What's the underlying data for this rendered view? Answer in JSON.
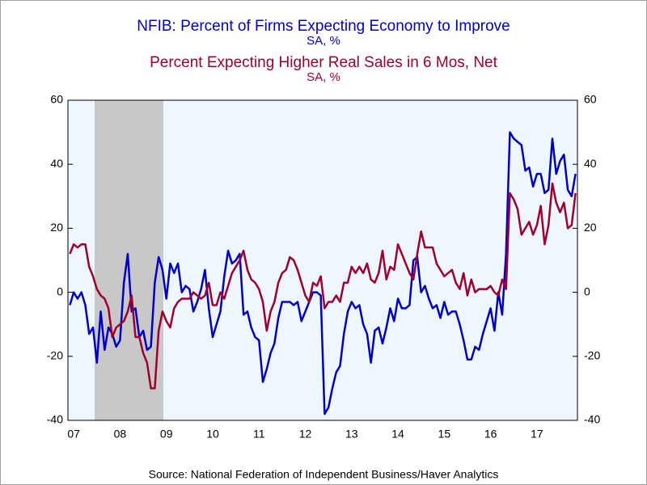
{
  "chart_data": {
    "type": "line",
    "series": [
      {
        "name": "NFIB: Percent of Firms Expecting Economy to Improve",
        "units": "SA, %",
        "color": "#0000c8",
        "values": [
          -4,
          0,
          -2,
          0,
          -4,
          -13,
          -11,
          -22,
          -6,
          -18,
          -11,
          -13,
          -17,
          -15,
          3,
          12,
          -6,
          -5,
          -14,
          -12,
          -18,
          -17,
          3,
          11,
          7,
          -2,
          9,
          6,
          9,
          0,
          2,
          1,
          -6,
          -3,
          1,
          7,
          -5,
          -14,
          -10,
          -6,
          5,
          13,
          9,
          10,
          12,
          -7,
          -6,
          -11,
          -14,
          -15,
          -28,
          -24,
          -19,
          -16,
          -8,
          -3,
          -3,
          -3,
          -4,
          -3,
          -9,
          -6,
          -3,
          0,
          0,
          -1,
          -38,
          -36,
          -30,
          -25,
          -23,
          -13,
          -6,
          -3,
          -5,
          -4,
          -10,
          -13,
          -22,
          -12,
          -11,
          -16,
          -11,
          -5,
          -9,
          -2,
          -5,
          -5,
          -4,
          10,
          11,
          0,
          2,
          -2,
          -5,
          -4,
          -8,
          -3,
          -7,
          -6,
          -6,
          -10,
          -15,
          -21,
          -21,
          -17,
          -18,
          -13,
          -9,
          -5,
          -12,
          0,
          -7,
          12,
          50,
          48,
          47,
          46,
          38,
          39,
          33,
          37,
          37,
          31,
          32,
          48,
          37,
          41,
          43,
          32,
          30,
          37
        ]
      },
      {
        "name": "Percent Expecting Higher Real Sales in 6 Mos, Net",
        "units": "SA, %",
        "color": "#a0002c",
        "values": [
          12,
          15,
          14,
          15,
          15,
          8,
          5,
          1,
          -1,
          -2,
          -5,
          -14,
          -11,
          -10,
          -9,
          -6,
          -1,
          -14,
          -14,
          -19,
          -22,
          -30,
          -30,
          -12,
          -6,
          -9,
          -11,
          -5,
          -3,
          -2,
          -2,
          -2,
          0,
          -1,
          -2,
          -1,
          3,
          -4,
          -4,
          0,
          -2,
          2,
          6,
          8,
          10,
          13,
          7,
          4,
          3,
          1,
          -3,
          -12,
          -6,
          -3,
          3,
          6,
          7,
          11,
          10,
          7,
          3,
          -1,
          -3,
          3,
          2,
          5,
          -5,
          -3,
          -3,
          -1,
          -3,
          3,
          3,
          8,
          6,
          8,
          6,
          9,
          4,
          3,
          6,
          13,
          4,
          8,
          7,
          15,
          12,
          9,
          6,
          4,
          12,
          19,
          14,
          14,
          14,
          9,
          7,
          5,
          6,
          7,
          3,
          1,
          6,
          -1,
          4,
          0,
          1,
          1,
          1,
          2,
          0,
          -1,
          4,
          1,
          31,
          29,
          26,
          18,
          20,
          22,
          18,
          21,
          27,
          15,
          21,
          34,
          28,
          25,
          28,
          20,
          21,
          31
        ]
      }
    ],
    "categories": [
      null,
      "07",
      null,
      null,
      null,
      null,
      null,
      null,
      null,
      null,
      null,
      null,
      null,
      "08",
      null,
      null,
      null,
      null,
      null,
      null,
      null,
      null,
      null,
      null,
      null,
      "09",
      null,
      null,
      null,
      null,
      null,
      null,
      null,
      null,
      null,
      null,
      null,
      "10",
      null,
      null,
      null,
      null,
      null,
      null,
      null,
      null,
      null,
      null,
      null,
      "11",
      null,
      null,
      null,
      null,
      null,
      null,
      null,
      null,
      null,
      null,
      null,
      "12",
      null,
      null,
      null,
      null,
      null,
      null,
      null,
      null,
      null,
      null,
      null,
      "13",
      null,
      null,
      null,
      null,
      null,
      null,
      null,
      null,
      null,
      null,
      null,
      "14",
      null,
      null,
      null,
      null,
      null,
      null,
      null,
      null,
      null,
      null,
      null,
      "15",
      null,
      null,
      null,
      null,
      null,
      null,
      null,
      null,
      null,
      null,
      null,
      "16",
      null,
      null,
      null,
      null,
      null,
      null,
      null,
      null,
      null,
      null,
      null,
      "17",
      null,
      null,
      null,
      null,
      null,
      null,
      null,
      null,
      null,
      null
    ],
    "ylim": [
      -40,
      60
    ],
    "yticks": [
      -40,
      -20,
      0,
      20,
      40,
      60
    ],
    "y2lim": [
      -40,
      60
    ],
    "y2ticks": [
      -40,
      -20,
      0,
      20,
      40,
      60
    ],
    "source": "Source:  National Federation of Independent Business/Haver Analytics"
  }
}
